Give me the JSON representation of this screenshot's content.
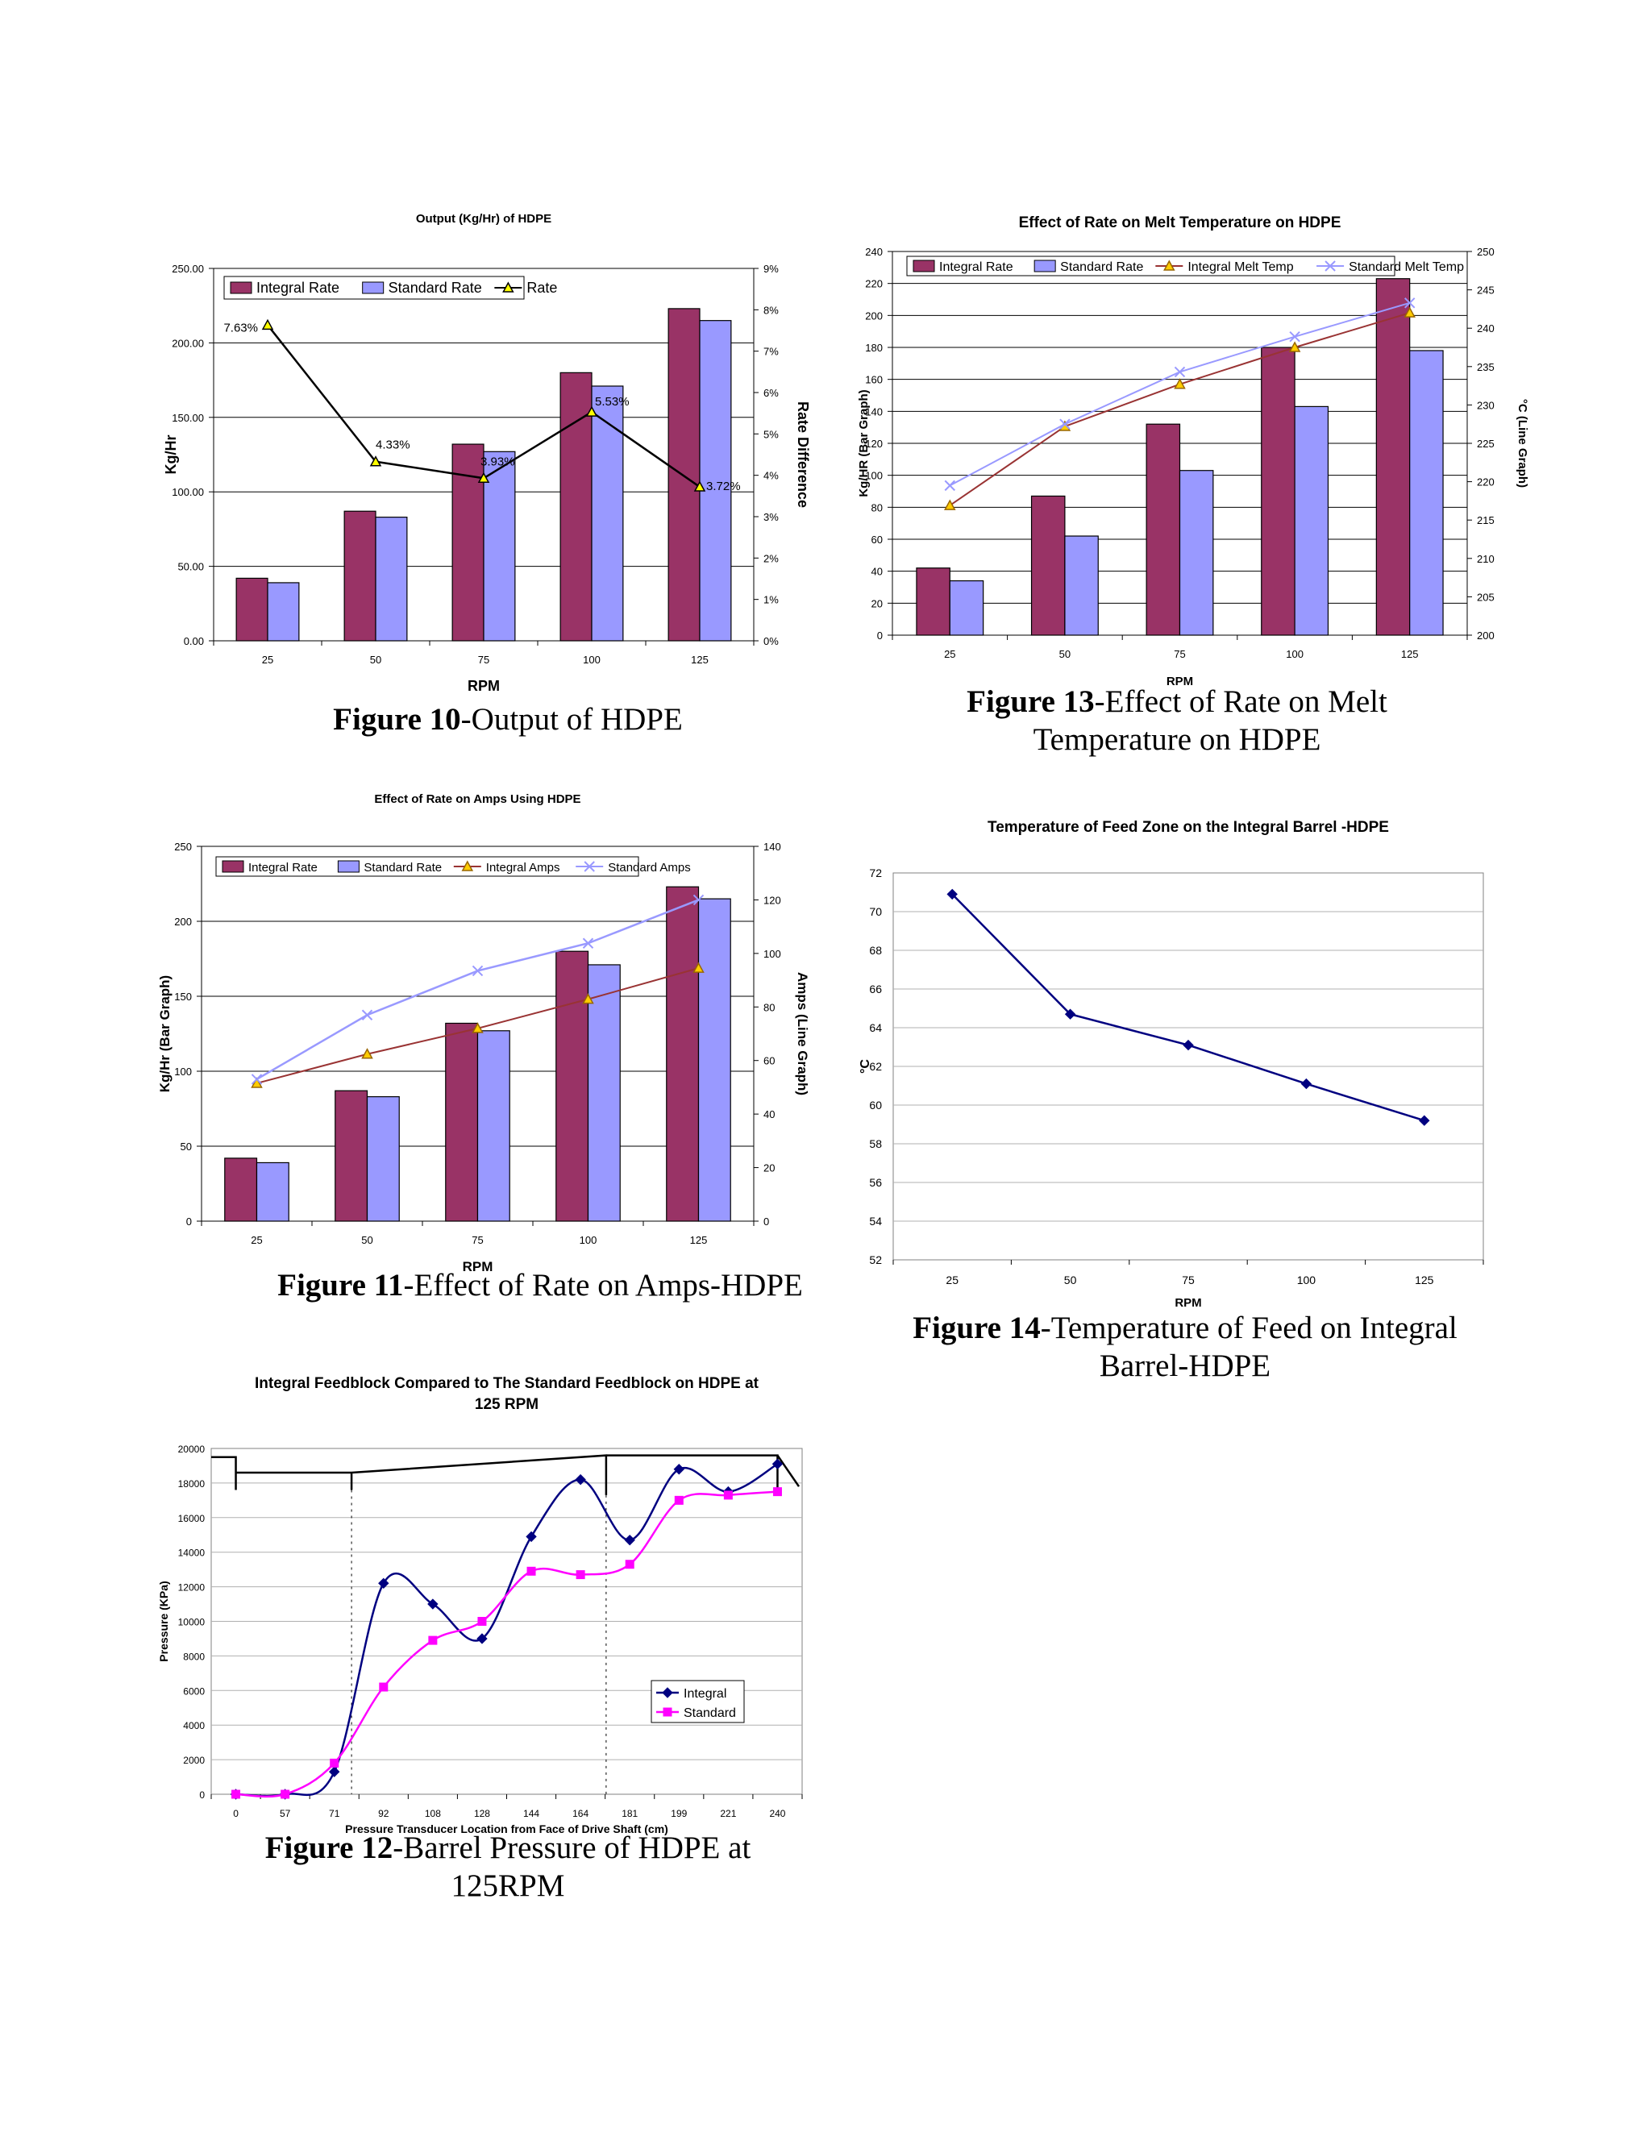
{
  "colors": {
    "integral_bar": "#993366",
    "standard_bar": "#9999ff",
    "integral_line": "#993333",
    "standard_line": "#9999ff",
    "rate_marker": "#ffff00",
    "integral_amps_marker": "#ffcc00",
    "navy": "#000080",
    "magenta": "#ff00ff"
  },
  "captions": {
    "fig10": {
      "num": "Figure 10",
      "text": "-Output of HDPE"
    },
    "fig13": {
      "num": "Figure 13",
      "text": "-Effect of Rate on Melt Temperature on HDPE"
    },
    "fig11": {
      "num": "Figure 11",
      "text": "-Effect of Rate on Amps-HDPE"
    },
    "fig14": {
      "num": "Figure 14",
      "text": "-Temperature of Feed on Integral Barrel-HDPE"
    },
    "fig12": {
      "num": "Figure 12",
      "text": "-Barrel Pressure of HDPE at 125RPM"
    }
  },
  "chart_data": [
    {
      "id": "fig10",
      "type": "bar",
      "title": "Output (Kg/Hr) of HDPE",
      "xlabel": "RPM",
      "ylabel": "Kg/Hr",
      "y2label": "Rate Difference",
      "categories": [
        "25",
        "50",
        "75",
        "100",
        "125"
      ],
      "ylim": [
        0,
        250
      ],
      "yticks": [
        "0.00",
        "50.00",
        "100.00",
        "150.00",
        "200.00",
        "250.00"
      ],
      "y2lim": [
        0,
        9
      ],
      "y2ticks": [
        "0%",
        "1%",
        "2%",
        "3%",
        "4%",
        "5%",
        "6%",
        "7%",
        "8%",
        "9%"
      ],
      "grid": true,
      "legend": "top-left",
      "series": [
        {
          "name": "Integral Rate",
          "kind": "bar",
          "values": [
            42,
            87,
            132,
            180,
            223
          ]
        },
        {
          "name": "Standard Rate",
          "kind": "bar",
          "values": [
            39,
            83,
            127,
            171,
            215
          ]
        },
        {
          "name": "Rate",
          "kind": "line",
          "axis": "right",
          "values": [
            7.63,
            4.33,
            3.93,
            5.53,
            3.72
          ],
          "labels": [
            "7.63%",
            "4.33%",
            "3.93%",
            "5.53%",
            "3.72%"
          ]
        }
      ]
    },
    {
      "id": "fig13",
      "type": "bar",
      "title": "Effect of Rate on Melt Temperature on HDPE",
      "xlabel": "RPM",
      "ylabel": "Kg/HR (Bar Graph)",
      "y2label": "°C (Line Graph)",
      "categories": [
        "25",
        "50",
        "75",
        "100",
        "125"
      ],
      "ylim": [
        0,
        240
      ],
      "yticks": [
        "0",
        "20",
        "40",
        "60",
        "80",
        "100",
        "120",
        "140",
        "160",
        "180",
        "200",
        "220",
        "240"
      ],
      "y2lim": [
        200,
        250
      ],
      "y2ticks": [
        "200",
        "205",
        "210",
        "215",
        "220",
        "225",
        "230",
        "235",
        "240",
        "245",
        "250"
      ],
      "grid": true,
      "legend": "top",
      "series": [
        {
          "name": "Integral Rate",
          "kind": "bar",
          "values": [
            42,
            87,
            132,
            180,
            223
          ]
        },
        {
          "name": "Standard Rate",
          "kind": "bar",
          "values": [
            34,
            62,
            103,
            143,
            178
          ]
        },
        {
          "name": "Integral Melt Temp",
          "kind": "line",
          "axis": "right",
          "values": [
            216.9,
            227.2,
            232.7,
            237.5,
            242
          ]
        },
        {
          "name": "Standard Melt Temp",
          "kind": "line",
          "axis": "right",
          "values": [
            219.5,
            227.5,
            234.3,
            238.9,
            243.3
          ]
        }
      ]
    },
    {
      "id": "fig11",
      "type": "bar",
      "title": "Effect of Rate on Amps Using HDPE",
      "xlabel": "RPM",
      "ylabel": "Kg/Hr (Bar Graph)",
      "y2label": "Amps (Line Graph)",
      "categories": [
        "25",
        "50",
        "75",
        "100",
        "125"
      ],
      "ylim": [
        0,
        250
      ],
      "yticks": [
        "0",
        "50",
        "100",
        "150",
        "200",
        "250"
      ],
      "y2lim": [
        0,
        140
      ],
      "y2ticks": [
        "0",
        "20",
        "40",
        "60",
        "80",
        "100",
        "120",
        "140"
      ],
      "grid": true,
      "legend": "top",
      "series": [
        {
          "name": "Integral Rate",
          "kind": "bar",
          "values": [
            42,
            87,
            132,
            180,
            223
          ]
        },
        {
          "name": "Standard Rate",
          "kind": "bar",
          "values": [
            39,
            83,
            127,
            171,
            215
          ]
        },
        {
          "name": "Integral Amps",
          "kind": "line",
          "axis": "right",
          "values": [
            51.5,
            62.4,
            72,
            82.9,
            94.5
          ]
        },
        {
          "name": "Standard Amps",
          "kind": "line",
          "axis": "right",
          "values": [
            53,
            77,
            93.5,
            103.8,
            120
          ]
        }
      ]
    },
    {
      "id": "fig14",
      "type": "line",
      "title": "Temperature of Feed Zone on the Integral Barrel -HDPE",
      "xlabel": "RPM",
      "ylabel": "°C",
      "categories": [
        "25",
        "50",
        "75",
        "100",
        "125"
      ],
      "ylim": [
        52,
        72
      ],
      "yticks": [
        "52",
        "54",
        "56",
        "58",
        "60",
        "62",
        "64",
        "66",
        "68",
        "70",
        "72"
      ],
      "grid": true,
      "series": [
        {
          "name": "",
          "values": [
            70.9,
            64.7,
            63.1,
            61.1,
            59.2
          ]
        }
      ]
    },
    {
      "id": "fig12",
      "type": "line",
      "title": "Integral Feedblock Compared to The Standard Feedblock on HDPE at 125 RPM",
      "xlabel": "Pressure Transducer Location from Face of Drive Shaft (cm)",
      "ylabel": "Pressure (KPa)",
      "categories": [
        "0",
        "57",
        "71",
        "92",
        "108",
        "128",
        "144",
        "164",
        "181",
        "199",
        "221",
        "240"
      ],
      "ylim": [
        0,
        20000
      ],
      "yticks": [
        "0",
        "2000",
        "4000",
        "6000",
        "8000",
        "10000",
        "12000",
        "14000",
        "16000",
        "18000",
        "20000"
      ],
      "grid": true,
      "legend": "bottom-right",
      "series": [
        {
          "name": "Integral",
          "values": [
            0,
            0,
            1300,
            12200,
            11000,
            9000,
            14900,
            18200,
            14700,
            18800,
            17500,
            19100
          ]
        },
        {
          "name": "Standard",
          "values": [
            0,
            0,
            1800,
            6200,
            8900,
            10000,
            12900,
            12700,
            13300,
            17000,
            17300,
            17500
          ]
        }
      ]
    }
  ]
}
